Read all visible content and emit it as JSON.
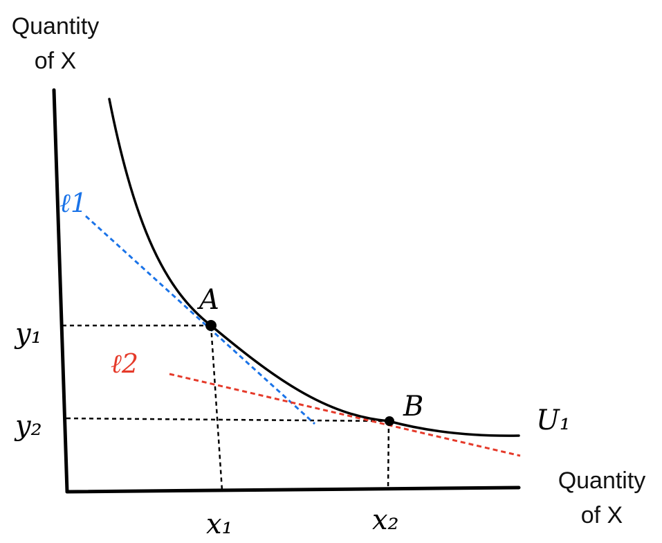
{
  "y_axis_title": {
    "line1": "Quantity",
    "line2": "of X"
  },
  "x_axis_title": {
    "line1": "Quantity",
    "line2": "of X"
  },
  "curve_label": "U₁",
  "points": [
    {
      "id": "A",
      "label": "A"
    },
    {
      "id": "B",
      "label": "B"
    }
  ],
  "tangents": [
    {
      "id": "l1",
      "label": "ℓ1",
      "color": "#1a73e8"
    },
    {
      "id": "l2",
      "label": "ℓ2",
      "color": "#e53a2a"
    }
  ],
  "x_ticks": [
    "x₁",
    "x₂"
  ],
  "y_ticks": [
    "y₁",
    "y₂"
  ],
  "colors": {
    "axis": "#000000",
    "curve": "#000000",
    "guide": "#000000"
  }
}
